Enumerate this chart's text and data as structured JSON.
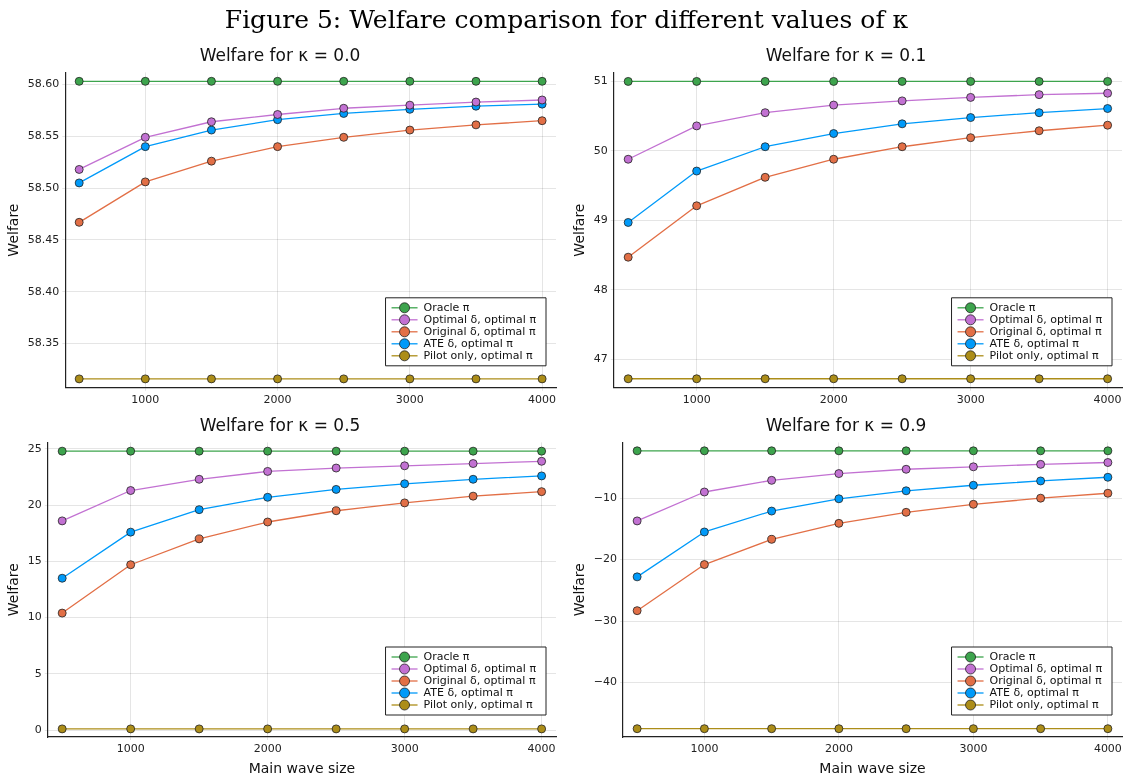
{
  "chart_data": [
    {
      "type": "line",
      "title": "Welfare for κ = 0.0",
      "ylabel": "Welfare",
      "annotations": [
        "Figure 5: Welfare comparison for different values of κ"
      ],
      "x": [
        500,
        1000,
        1500,
        2000,
        2500,
        3000,
        3500,
        4000
      ],
      "xlim": [
        395,
        4105
      ],
      "xticks": [
        1000,
        2000,
        3000,
        4000
      ],
      "ylim": [
        58.3074,
        58.6116
      ],
      "yticks": [
        58.35,
        {
          "value": 58.4,
          "label": "58.40"
        },
        58.45,
        {
          "value": 58.5,
          "label": "58.50"
        },
        58.55,
        {
          "value": 58.6,
          "label": "58.60"
        }
      ],
      "grid": true,
      "legend": "bottom right",
      "marker": "circle",
      "series": [
        {
          "name": "Oracle π",
          "color": "#3da44d",
          "values": [
            58.603,
            58.603,
            58.603,
            58.603,
            58.603,
            58.603,
            58.603,
            58.603
          ]
        },
        {
          "name": "Optimal δ, optimal π",
          "color": "#c271d2",
          "values": [
            58.518,
            58.549,
            58.564,
            58.571,
            58.577,
            58.58,
            58.583,
            58.585
          ]
        },
        {
          "name": "Original δ, optimal π",
          "color": "#e26f46",
          "values": [
            58.467,
            58.506,
            58.526,
            58.54,
            58.549,
            58.556,
            58.561,
            58.565
          ]
        },
        {
          "name": "ATE δ, optimal π",
          "color": "#009af9",
          "values": [
            58.505,
            58.54,
            58.556,
            58.566,
            58.572,
            58.576,
            58.579,
            58.581
          ]
        },
        {
          "name": "Pilot only, optimal π",
          "color": "#ac8d18",
          "values": [
            58.316,
            58.316,
            58.316,
            58.316,
            58.316,
            58.316,
            58.316,
            58.316
          ]
        }
      ]
    },
    {
      "type": "line",
      "title": "Welfare for κ = 0.1",
      "ylabel": "Welfare",
      "x": [
        500,
        1000,
        1500,
        2000,
        2500,
        3000,
        3500,
        4000
      ],
      "xlim": [
        395,
        4105
      ],
      "xticks": [
        1000,
        2000,
        3000,
        4000
      ],
      "ylim": [
        46.59,
        51.13
      ],
      "yticks": [
        47,
        48,
        49,
        50,
        51
      ],
      "grid": true,
      "legend": "bottom right",
      "marker": "circle",
      "series": [
        {
          "name": "Oracle π",
          "color": "#3da44d",
          "values": [
            51.0,
            51.0,
            51.0,
            51.0,
            51.0,
            51.0,
            51.0,
            51.0
          ]
        },
        {
          "name": "Optimal δ, optimal π",
          "color": "#c271d2",
          "values": [
            49.88,
            50.36,
            50.55,
            50.66,
            50.72,
            50.77,
            50.81,
            50.83
          ]
        },
        {
          "name": "Original δ, optimal π",
          "color": "#e26f46",
          "values": [
            48.47,
            49.21,
            49.62,
            49.88,
            50.06,
            50.19,
            50.29,
            50.37
          ]
        },
        {
          "name": "ATE δ, optimal π",
          "color": "#009af9",
          "values": [
            48.97,
            49.71,
            50.06,
            50.25,
            50.39,
            50.48,
            50.55,
            50.61
          ]
        },
        {
          "name": "Pilot only, optimal π",
          "color": "#ac8d18",
          "values": [
            46.72,
            46.72,
            46.72,
            46.72,
            46.72,
            46.72,
            46.72,
            46.72
          ]
        }
      ]
    },
    {
      "type": "line",
      "title": "Welfare for κ = 0.5",
      "xlabel": "Main wave size",
      "ylabel": "Welfare",
      "x": [
        500,
        1000,
        1500,
        2000,
        2500,
        3000,
        3500,
        4000
      ],
      "xlim": [
        395,
        4105
      ],
      "xticks": [
        1000,
        2000,
        3000,
        4000
      ],
      "ylim": [
        -0.62,
        25.58
      ],
      "yticks": [
        0,
        5,
        10,
        15,
        20,
        25
      ],
      "grid": true,
      "legend": "bottom right",
      "marker": "circle",
      "series": [
        {
          "name": "Oracle π",
          "color": "#3da44d",
          "values": [
            24.8,
            24.8,
            24.8,
            24.8,
            24.8,
            24.8,
            24.8,
            24.8
          ]
        },
        {
          "name": "Optimal δ, optimal π",
          "color": "#c271d2",
          "values": [
            18.6,
            21.3,
            22.3,
            23.0,
            23.3,
            23.5,
            23.7,
            23.9
          ]
        },
        {
          "name": "Original δ, optimal π",
          "color": "#e26f46",
          "values": [
            10.4,
            14.7,
            17.0,
            18.5,
            19.5,
            20.2,
            20.8,
            21.2
          ]
        },
        {
          "name": "ATE δ, optimal π",
          "color": "#009af9",
          "values": [
            13.5,
            17.6,
            19.6,
            20.7,
            21.4,
            21.9,
            22.3,
            22.6
          ]
        },
        {
          "name": "Pilot only, optimal π",
          "color": "#ac8d18",
          "values": [
            0.1,
            0.1,
            0.1,
            0.1,
            0.1,
            0.1,
            0.1,
            0.1
          ]
        }
      ]
    },
    {
      "type": "line",
      "title": "Welfare for κ = 0.9",
      "xlabel": "Main wave size",
      "ylabel": "Welfare",
      "x": [
        500,
        1000,
        1500,
        2000,
        2500,
        3000,
        3500,
        4000
      ],
      "xlim": [
        395,
        4105
      ],
      "xticks": [
        1000,
        2000,
        3000,
        4000
      ],
      "ylim": [
        -48.85,
        -0.93
      ],
      "yticks": [
        {
          "value": -40,
          "label": "−40"
        },
        {
          "value": -30,
          "label": "−30"
        },
        {
          "value": -20,
          "label": "−20"
        },
        {
          "value": -10,
          "label": "−10"
        }
      ],
      "grid": true,
      "legend": "bottom right",
      "marker": "circle",
      "series": [
        {
          "name": "Oracle π",
          "color": "#3da44d",
          "values": [
            -2.3,
            -2.3,
            -2.3,
            -2.3,
            -2.3,
            -2.3,
            -2.3,
            -2.3
          ]
        },
        {
          "name": "Optimal δ, optimal π",
          "color": "#c271d2",
          "values": [
            -13.7,
            -9.0,
            -7.1,
            -6.0,
            -5.3,
            -4.9,
            -4.5,
            -4.2
          ]
        },
        {
          "name": "Original δ, optimal π",
          "color": "#e26f46",
          "values": [
            -28.3,
            -20.8,
            -16.7,
            -14.1,
            -12.3,
            -11.0,
            -10.0,
            -9.2
          ]
        },
        {
          "name": "ATE δ, optimal π",
          "color": "#009af9",
          "values": [
            -22.8,
            -15.5,
            -12.1,
            -10.1,
            -8.8,
            -7.9,
            -7.2,
            -6.6
          ]
        },
        {
          "name": "Pilot only, optimal π",
          "color": "#ac8d18",
          "values": [
            -47.5,
            -47.5,
            -47.5,
            -47.5,
            -47.5,
            -47.5,
            -47.5,
            -47.5
          ]
        }
      ]
    }
  ]
}
